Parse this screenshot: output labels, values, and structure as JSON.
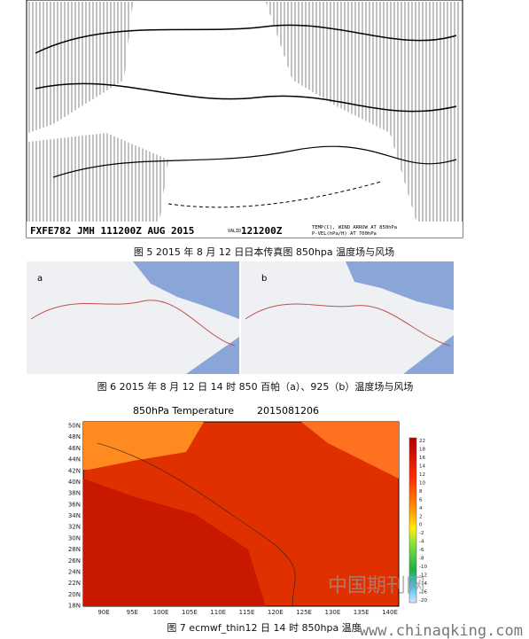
{
  "figure5": {
    "header": "FXFE782 JMH 111200Z AUG 2015",
    "valid": "VALID",
    "valid_time": "121200Z",
    "legend_lines": [
      "TEMP(C), WIND ARROW AT 850hPa",
      "P-VEL(hPa/H) AT 700hPa"
    ],
    "caption": "图 5 2015 年 8 月 12 日日本传真图 850hpa 温度场与风场"
  },
  "figure6": {
    "panel_labels": [
      "a",
      "b"
    ],
    "caption": "图 6 2015 年 8 月 12 日 14 时 850 百帕（a）、925（b）温度场与风场"
  },
  "figure7": {
    "title": "850hPa Temperature",
    "time": "2015081206",
    "lat_labels": [
      "50N",
      "48N",
      "46N",
      "44N",
      "42N",
      "40N",
      "38N",
      "36N",
      "34N",
      "32N",
      "30N",
      "28N",
      "26N",
      "24N",
      "22N",
      "20N",
      "18N"
    ],
    "lon_labels": [
      "90E",
      "95E",
      "100E",
      "105E",
      "110E",
      "115E",
      "120E",
      "125E",
      "130E",
      "135E",
      "140E"
    ],
    "colorbar_labels": [
      "22",
      "18",
      "16",
      "14",
      "12",
      "10",
      "8",
      "6",
      "4",
      "2",
      "0",
      "-2",
      "-4",
      "-6",
      "-8",
      "-10",
      "-12",
      "-14",
      "-16",
      "-20"
    ],
    "caption": "图 7 ecmwf_thin12 日 14 时 850hpa 温度"
  },
  "watermark": {
    "logo": "中国期刊网",
    "url": "www.chinaqking.com"
  }
}
